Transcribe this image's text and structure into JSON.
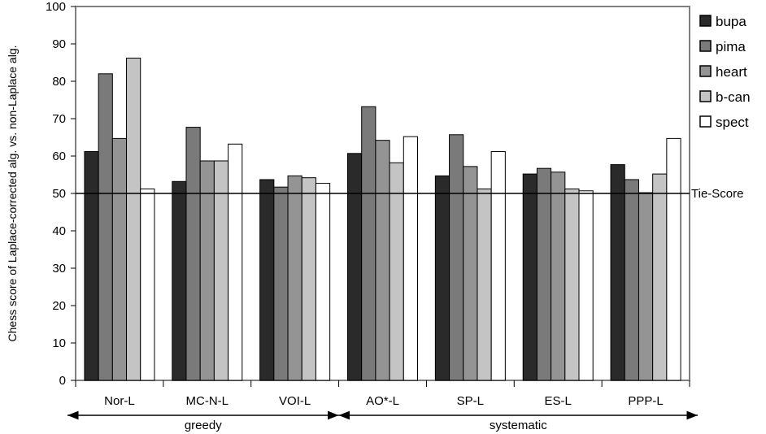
{
  "chart_data": {
    "type": "bar",
    "ylabel": "Chess score of Laplace-corrected alg. vs. non-Laplace alg.",
    "ylim": [
      0,
      100
    ],
    "yticks": [
      0,
      10,
      20,
      30,
      40,
      50,
      60,
      70,
      80,
      90,
      100
    ],
    "categories": [
      "Nor-L",
      "MC-N-L",
      "VOI-L",
      "AO*-L",
      "SP-L",
      "ES-L",
      "PPP-L"
    ],
    "series": [
      {
        "name": "bupa",
        "color": "#2a2a2a",
        "values": [
          61.2,
          53.2,
          53.7,
          60.7,
          54.7,
          55.2,
          57.7
        ]
      },
      {
        "name": "pima",
        "color": "#7a7a7a",
        "values": [
          82.0,
          67.7,
          51.7,
          73.2,
          65.7,
          56.7,
          53.7
        ]
      },
      {
        "name": "heart",
        "color": "#949494",
        "values": [
          64.7,
          58.7,
          54.7,
          64.2,
          57.2,
          55.7,
          50.2
        ]
      },
      {
        "name": "b-can",
        "color": "#c4c4c4",
        "values": [
          86.2,
          58.7,
          54.2,
          58.2,
          51.2,
          51.2,
          55.2
        ]
      },
      {
        "name": "spect",
        "color": "#ffffff",
        "values": [
          51.2,
          63.2,
          52.7,
          65.2,
          61.2,
          50.7,
          64.7
        ]
      }
    ],
    "reference_line": {
      "value": 50,
      "label": "Tie-Score"
    },
    "groups": [
      {
        "label": "greedy",
        "categories": [
          "Nor-L",
          "MC-N-L",
          "VOI-L"
        ]
      },
      {
        "label": "systematic",
        "categories": [
          "AO*-L",
          "SP-L",
          "ES-L",
          "PPP-L"
        ]
      }
    ],
    "grid": false,
    "legend_position": "right"
  }
}
